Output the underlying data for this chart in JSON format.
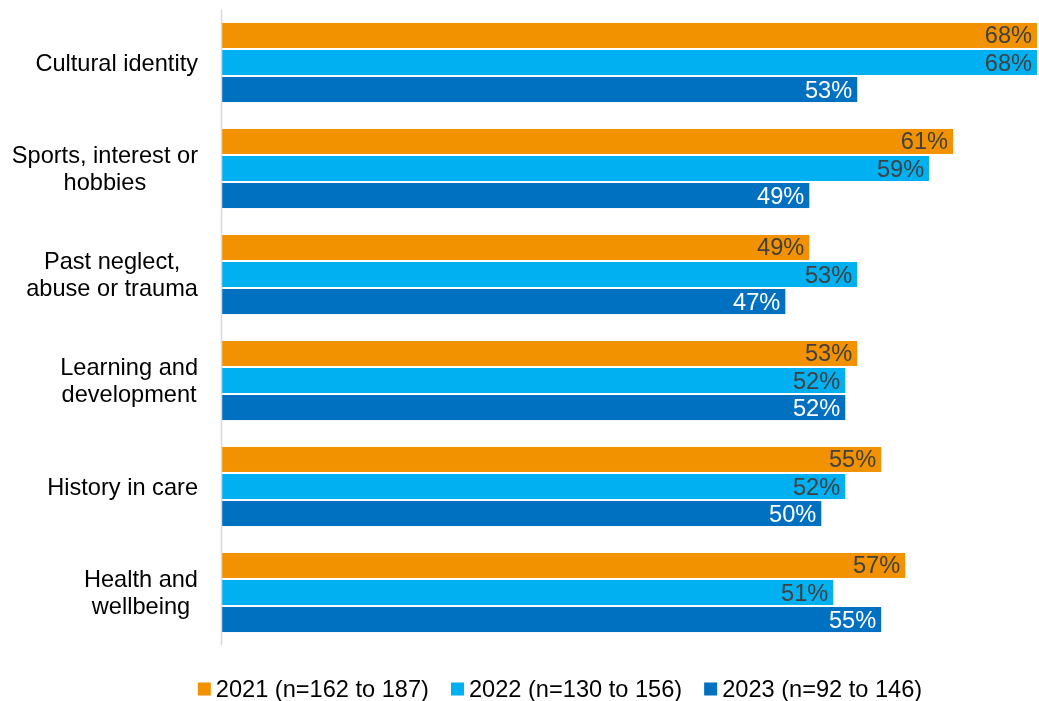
{
  "chart_data": {
    "type": "bar",
    "orientation": "horizontal",
    "legend": "bottom",
    "categories": [
      "Cultural identity",
      "Sports, interest or hobbies",
      "Past neglect, abuse or trauma",
      "Learning and development",
      "History in care",
      "Health and wellbeing"
    ],
    "series": [
      {
        "name": "2021 (n=162 to 187)",
        "color": "#f39200",
        "values": [
          68,
          61,
          49,
          53,
          55,
          57
        ],
        "value_labels": [
          "68%",
          "61%",
          "49%",
          "53%",
          "55%",
          "57%"
        ]
      },
      {
        "name": "2022 (n=130 to 156)",
        "color": "#00b0f0",
        "values": [
          68,
          59,
          53,
          52,
          52,
          51
        ],
        "value_labels": [
          "68%",
          "59%",
          "53%",
          "52%",
          "52%",
          "51%"
        ]
      },
      {
        "name": "2023 (n=92 to 146)",
        "color": "#0070c0",
        "values": [
          53,
          49,
          47,
          52,
          50,
          55
        ],
        "value_labels": [
          "53%",
          "49%",
          "47%",
          "52%",
          "50%",
          "55%"
        ]
      }
    ]
  }
}
